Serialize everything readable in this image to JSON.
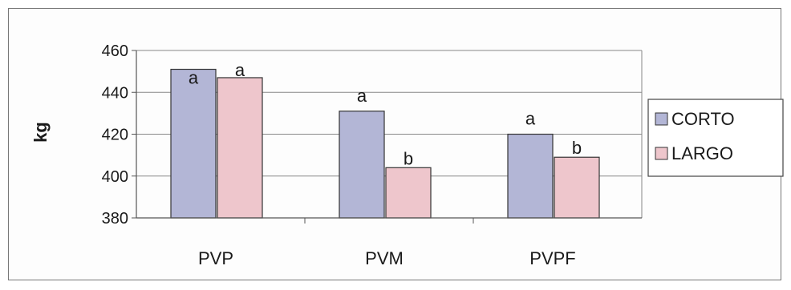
{
  "chart_data": {
    "type": "bar",
    "title": "",
    "xlabel": "",
    "ylabel": "kg",
    "ylim": [
      380,
      460
    ],
    "yticks": [
      380,
      400,
      420,
      440,
      460
    ],
    "categories": [
      "PVP",
      "PVM",
      "PVPF"
    ],
    "series": [
      {
        "name": "CORTO",
        "values": [
          451,
          431,
          420
        ],
        "labels": [
          "a",
          "a",
          "a"
        ],
        "color": "#b3b6d6"
      },
      {
        "name": "LARGO",
        "values": [
          447,
          404,
          409
        ],
        "labels": [
          "a",
          "b",
          "b"
        ],
        "color": "#eec6cc"
      }
    ],
    "grid": true,
    "legend_position": "right"
  }
}
